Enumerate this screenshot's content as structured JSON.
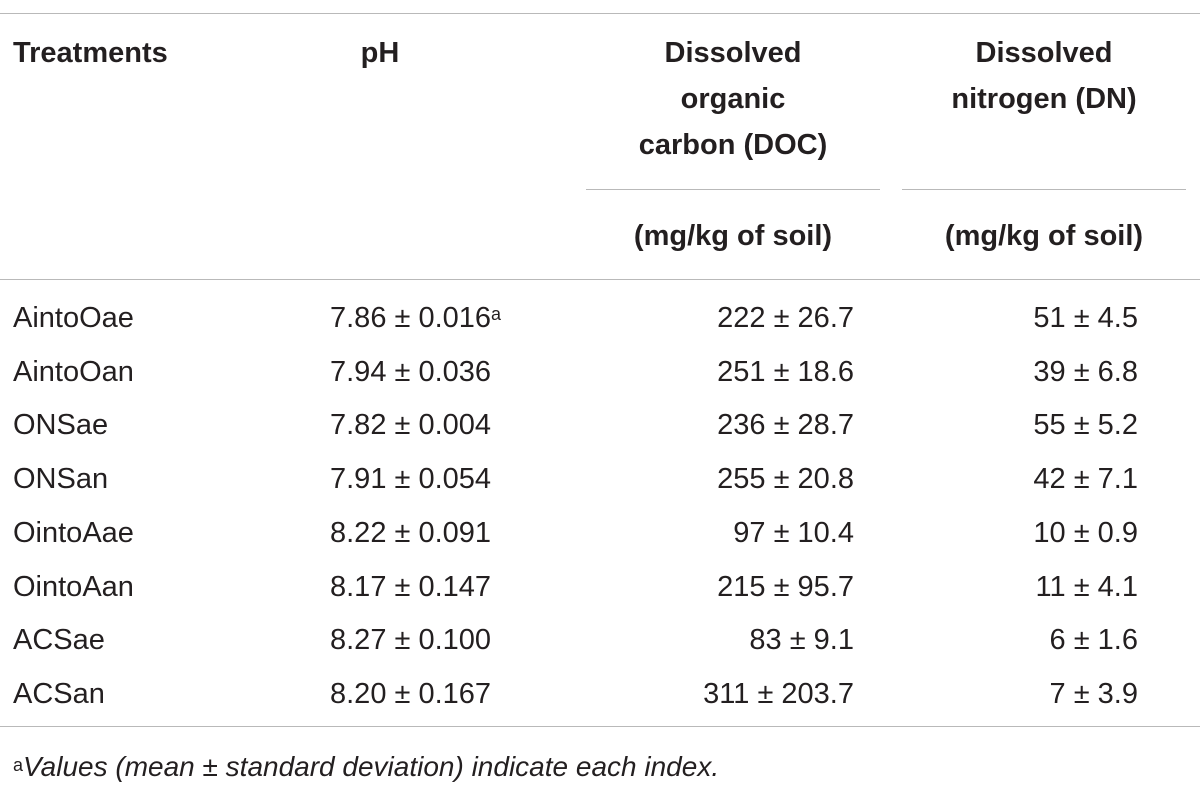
{
  "table": {
    "headers": {
      "treatments": "Treatments",
      "ph": "pH",
      "doc": [
        "Dissolved",
        "organic",
        "carbon (DOC)"
      ],
      "dn": [
        "Dissolved",
        "nitrogen (DN)"
      ],
      "doc_unit": "(mg/kg of soil)",
      "dn_unit": "(mg/kg of soil)"
    },
    "rows": [
      {
        "treatment": "AintoOae",
        "ph": "7.86 ± 0.016",
        "ph_note": "a",
        "doc": "222 ± 26.7",
        "dn": "51 ± 4.5"
      },
      {
        "treatment": "AintoOan",
        "ph": "7.94 ± 0.036",
        "ph_note": "",
        "doc": "251 ± 18.6",
        "dn": "39 ± 6.8"
      },
      {
        "treatment": "ONSae",
        "ph": "7.82 ± 0.004",
        "ph_note": "",
        "doc": "236 ± 28.7",
        "dn": "55 ± 5.2"
      },
      {
        "treatment": "ONSan",
        "ph": "7.91 ± 0.054",
        "ph_note": "",
        "doc": "255 ± 20.8",
        "dn": "42 ± 7.1"
      },
      {
        "treatment": "OintoAae",
        "ph": "8.22 ± 0.091",
        "ph_note": "",
        "doc": "97 ± 10.4",
        "dn": "10 ± 0.9"
      },
      {
        "treatment": "OintoAan",
        "ph": "8.17 ± 0.147",
        "ph_note": "",
        "doc": "215 ± 95.7",
        "dn": "11 ± 4.1"
      },
      {
        "treatment": "ACSae",
        "ph": "8.27 ± 0.100",
        "ph_note": "",
        "doc": "83 ± 9.1",
        "dn": "6 ± 1.6"
      },
      {
        "treatment": "ACSan",
        "ph": "8.20 ± 0.167",
        "ph_note": "",
        "doc": "311 ± 203.7",
        "dn": "7 ± 3.9"
      }
    ],
    "footnote": {
      "mark": "a",
      "text": "Values (mean ± standard deviation) indicate each index."
    }
  }
}
